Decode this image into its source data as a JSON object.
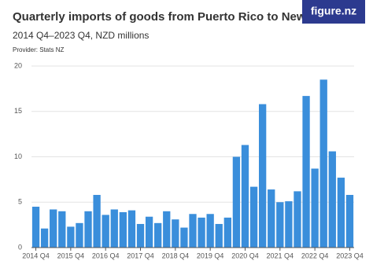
{
  "brand": "figure.nz",
  "chart_data": {
    "type": "bar",
    "title": "Quarterly imports of goods from Puerto Rico to New Zealand",
    "subtitle": "2014 Q4–2023 Q4, NZD millions",
    "source": "Provider: Stats NZ",
    "categories": [
      "2014 Q4",
      null,
      null,
      null,
      "2015 Q4",
      null,
      null,
      null,
      "2016 Q4",
      null,
      null,
      null,
      "2017 Q4",
      null,
      null,
      null,
      "2018 Q4",
      null,
      null,
      null,
      "2019 Q4",
      null,
      null,
      null,
      "2020 Q4",
      null,
      null,
      null,
      "2021 Q4",
      null,
      null,
      null,
      "2022 Q4",
      null,
      null,
      null,
      "2023 Q4"
    ],
    "values": [
      4.5,
      2.1,
      4.2,
      4.0,
      2.3,
      2.7,
      4.0,
      5.8,
      3.6,
      4.2,
      3.9,
      4.1,
      2.6,
      3.4,
      2.7,
      4.0,
      3.1,
      2.2,
      3.7,
      3.3,
      3.7,
      2.6,
      3.3,
      10.0,
      11.3,
      6.7,
      15.8,
      6.4,
      5.0,
      5.1,
      6.2,
      16.7,
      8.7,
      18.5,
      10.6,
      7.7,
      5.8
    ],
    "color": "#3a8edb",
    "ylim": [
      0,
      20
    ],
    "yticks": [
      0,
      5,
      10,
      15,
      20
    ],
    "grid": true
  }
}
